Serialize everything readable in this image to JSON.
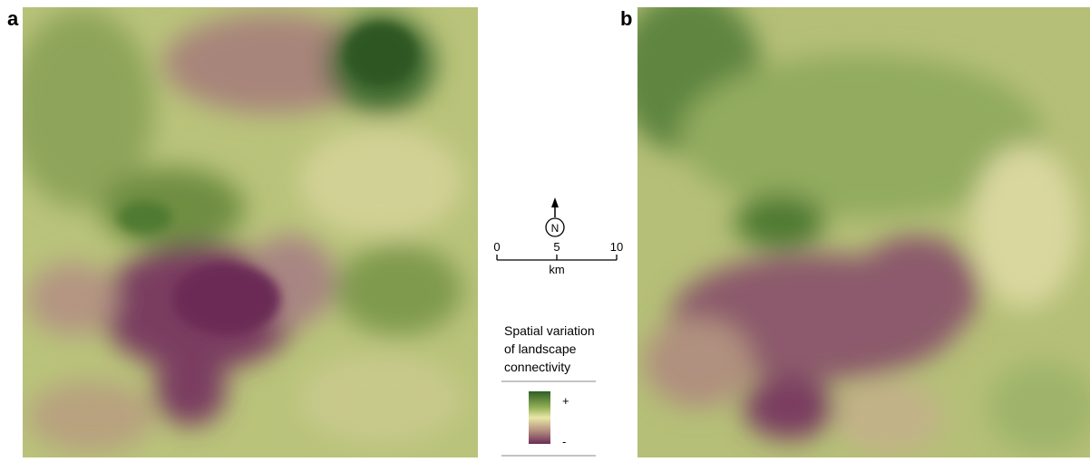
{
  "panels": [
    {
      "label": "a"
    },
    {
      "label": "b"
    }
  ],
  "north_arrow": {
    "label": "N"
  },
  "scale_bar": {
    "ticks": [
      "0",
      "5",
      "10"
    ],
    "unit": "km"
  },
  "legend": {
    "title_lines": [
      "Spatial variation",
      "of landscape",
      "connectivity"
    ],
    "high": "+",
    "low": "-"
  }
}
